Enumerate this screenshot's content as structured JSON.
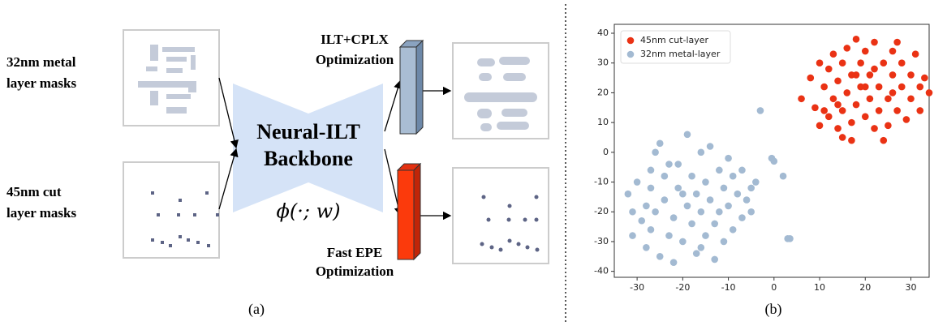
{
  "diagram": {
    "metal_label": [
      "32nm metal",
      "layer masks"
    ],
    "cut_label": [
      "45nm cut",
      "layer masks"
    ],
    "backbone": [
      "Neural-ILT",
      "Backbone"
    ],
    "function": "ϕ(·; w)",
    "top_branch": [
      "ILT+CPLX",
      "Optimization"
    ],
    "bottom_branch": [
      "Fast EPE",
      "Optimization"
    ],
    "caption_a": "(a)",
    "caption_b": "(b)"
  },
  "chart_data": {
    "type": "scatter",
    "xlim": [
      -35,
      34
    ],
    "ylim": [
      -42,
      43
    ],
    "xticks": [
      -30,
      -20,
      -10,
      0,
      10,
      20,
      30
    ],
    "yticks": [
      -40,
      -30,
      -20,
      -10,
      0,
      10,
      20,
      30,
      40
    ],
    "legend": "upper left",
    "series": [
      {
        "name": "45nm cut-layer",
        "color": "#ea3214",
        "x": [
          6,
          8,
          9,
          10,
          10,
          11,
          12,
          12,
          13,
          13,
          14,
          14,
          15,
          15,
          15,
          16,
          16,
          17,
          17,
          18,
          18,
          19,
          19,
          20,
          20,
          21,
          21,
          22,
          22,
          23,
          23,
          24,
          25,
          25,
          26,
          26,
          27,
          28,
          28,
          29,
          30,
          30,
          31,
          32,
          32,
          33,
          34,
          24,
          17,
          11,
          27,
          20,
          22,
          18,
          14,
          26
        ],
        "values": [
          18,
          25,
          15,
          9,
          30,
          22,
          12,
          28,
          18,
          33,
          8,
          24,
          5,
          14,
          30,
          20,
          35,
          10,
          26,
          16,
          38,
          22,
          30,
          12,
          34,
          18,
          26,
          8,
          37,
          22,
          14,
          30,
          18,
          9,
          26,
          34,
          14,
          22,
          30,
          11,
          18,
          26,
          33,
          22,
          14,
          25,
          20,
          4,
          4,
          14,
          37,
          22,
          28,
          26,
          16,
          20
        ]
      },
      {
        "name": "32nm metal-layer",
        "color": "#a3bad2",
        "x": [
          -32,
          -31,
          -31,
          -30,
          -29,
          -28,
          -28,
          -27,
          -27,
          -26,
          -26,
          -25,
          -25,
          -24,
          -24,
          -23,
          -22,
          -22,
          -21,
          -21,
          -20,
          -19,
          -19,
          -18,
          -18,
          -17,
          -17,
          -16,
          -16,
          -15,
          -15,
          -14,
          -14,
          -13,
          -13,
          -12,
          -12,
          -11,
          -11,
          -10,
          -10,
          -9,
          -9,
          -8,
          -7,
          -7,
          -6,
          -5,
          -5,
          -4,
          -3,
          -0.5,
          0,
          2,
          3,
          3.5,
          -20,
          -23,
          -16,
          -27
        ],
        "values": [
          -14,
          -20,
          -28,
          -10,
          -23,
          -18,
          -32,
          -12,
          -26,
          0,
          -20,
          3,
          -35,
          -8,
          -16,
          -28,
          -22,
          -37,
          -4,
          -12,
          -30,
          -18,
          6,
          -8,
          -24,
          -34,
          -14,
          0,
          -20,
          -28,
          -10,
          2,
          -16,
          -24,
          -36,
          -6,
          -20,
          -30,
          -12,
          -2,
          -18,
          -26,
          -8,
          -14,
          -6,
          -22,
          -16,
          -12,
          -20,
          -10,
          14,
          -2,
          -3,
          -8,
          -29,
          -29,
          -14,
          -4,
          -32,
          -6
        ]
      }
    ]
  }
}
